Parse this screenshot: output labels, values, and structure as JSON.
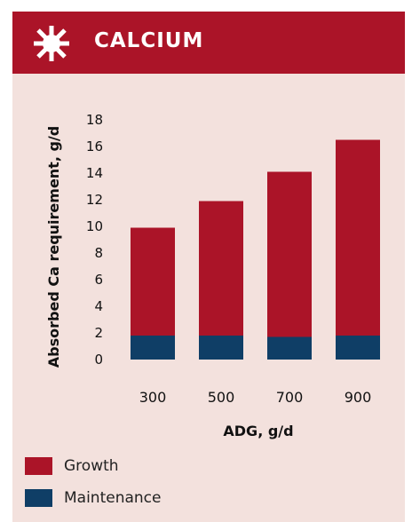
{
  "header": {
    "title": "CALCIUM",
    "icon": "sun-icon"
  },
  "colors": {
    "background": "#f3e1dd",
    "header": "#ab1428",
    "growth": "#ab1428",
    "maintenance": "#0f3e66"
  },
  "chart_data": {
    "type": "bar",
    "stacked": true,
    "categories": [
      "300",
      "500",
      "700",
      "900"
    ],
    "series": [
      {
        "name": "Maintenance",
        "values": [
          1.8,
          1.8,
          1.7,
          1.8
        ]
      },
      {
        "name": "Growth",
        "values": [
          8.1,
          10.1,
          12.4,
          14.7
        ]
      }
    ],
    "xlabel": "ADG, g/d",
    "ylabel": "Absorbed Ca requirement, g/d",
    "ylim": [
      0,
      18
    ],
    "yticks": [
      0,
      2,
      4,
      6,
      8,
      10,
      12,
      14,
      16,
      18
    ],
    "grid": false,
    "legend": "bottom-left"
  },
  "legend": [
    {
      "label": "Growth"
    },
    {
      "label": "Maintenance"
    }
  ]
}
